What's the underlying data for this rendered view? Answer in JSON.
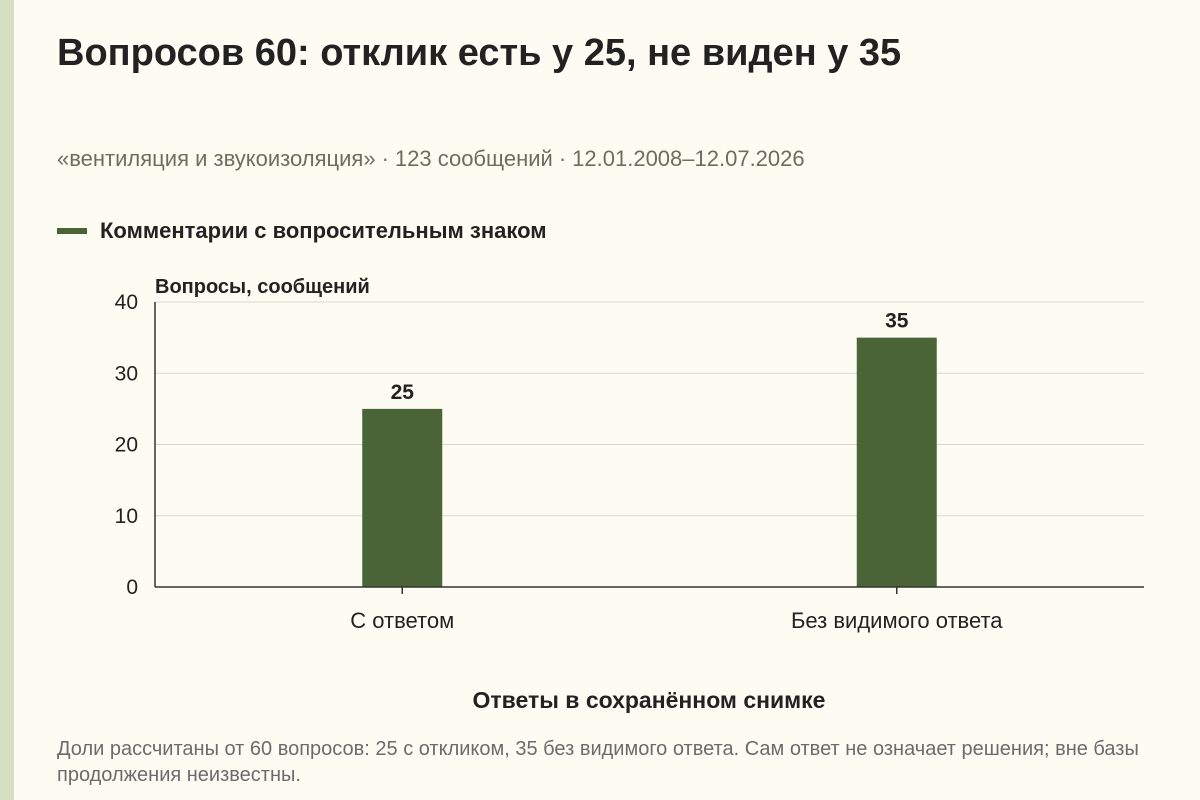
{
  "title": "Вопросов 60: отклик есть у 25, не виден у 35",
  "subtitle": {
    "source": "«вентиляция и звукоизоляция»",
    "messages": "123 сообщений",
    "period": "12.01.2008–12.07.2026",
    "separator": "·"
  },
  "footnote": "Доли рассчитаны от 60 вопросов: 25 с откликом, 35 без видимого ответа. Сам ответ не означает решения; вне базы продолжения неизвестны.",
  "colors": {
    "bar": "#4a6438",
    "grid": "#d9d9d2",
    "axis": "#333333",
    "text": "#222222",
    "muted": "#6b6f5a"
  },
  "chart_data": {
    "type": "bar",
    "categories": [
      "С ответом",
      "Без видимого ответа"
    ],
    "series": [
      {
        "name": "Комментарии с вопросительным знаком",
        "values": [
          25,
          35
        ]
      }
    ],
    "data_labels": [
      "25",
      "35"
    ],
    "xlabel": "Ответы в сохранённом снимке",
    "ylabel": "Вопросы, сообщений",
    "ylim": [
      0,
      40
    ],
    "yticks": [
      0,
      10,
      20,
      30,
      40
    ],
    "grid": true,
    "legend_position": "top-left"
  }
}
